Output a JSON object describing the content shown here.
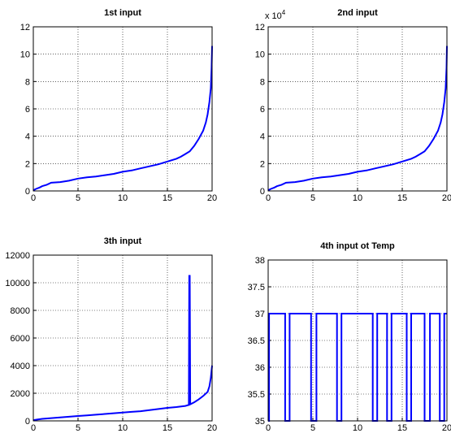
{
  "chart_data": [
    {
      "type": "line",
      "title": "1st input",
      "xlabel": "",
      "ylabel": "",
      "xlim": [
        0,
        20
      ],
      "ylim": [
        0,
        12
      ],
      "xticks": [
        "0",
        "5",
        "10",
        "15",
        "20"
      ],
      "yticks": [
        "0",
        "2",
        "4",
        "6",
        "8",
        "10",
        "12"
      ],
      "multiplier": "",
      "grid": true,
      "step": false,
      "series": [
        {
          "color": "#0000ff",
          "x": [
            0,
            0.3,
            0.7,
            1,
            1.5,
            2,
            3,
            4,
            5,
            6,
            7,
            8,
            9,
            10,
            11,
            12,
            13,
            14,
            15,
            16,
            16.5,
            17,
            17.5,
            18,
            18.5,
            19,
            19.3,
            19.5,
            19.7,
            19.85,
            19.95,
            20
          ],
          "y": [
            0.05,
            0.15,
            0.25,
            0.35,
            0.45,
            0.6,
            0.65,
            0.75,
            0.9,
            1.0,
            1.05,
            1.15,
            1.25,
            1.4,
            1.5,
            1.65,
            1.8,
            1.95,
            2.15,
            2.35,
            2.5,
            2.7,
            2.9,
            3.3,
            3.8,
            4.4,
            5.0,
            5.6,
            6.5,
            7.5,
            9.0,
            10.6
          ]
        }
      ]
    },
    {
      "type": "line",
      "title": "2nd input",
      "xlabel": "",
      "ylabel": "",
      "xlim": [
        0,
        20
      ],
      "ylim": [
        0,
        12
      ],
      "xticks": [
        "0",
        "5",
        "10",
        "15",
        "20"
      ],
      "yticks": [
        "0",
        "2",
        "4",
        "6",
        "8",
        "10",
        "12"
      ],
      "multiplier": "x 10",
      "multiplier_exp": "4",
      "grid": true,
      "step": false,
      "series": [
        {
          "color": "#0000ff",
          "x": [
            0,
            0.3,
            0.7,
            1,
            1.5,
            2,
            3,
            4,
            5,
            6,
            7,
            8,
            9,
            10,
            11,
            12,
            13,
            14,
            15,
            16,
            16.5,
            17,
            17.5,
            18,
            18.5,
            19,
            19.3,
            19.5,
            19.7,
            19.85,
            19.95,
            20
          ],
          "y": [
            0.05,
            0.15,
            0.25,
            0.35,
            0.45,
            0.6,
            0.65,
            0.75,
            0.9,
            1.0,
            1.05,
            1.15,
            1.25,
            1.4,
            1.5,
            1.65,
            1.8,
            1.95,
            2.15,
            2.35,
            2.5,
            2.7,
            2.9,
            3.3,
            3.8,
            4.4,
            5.0,
            5.6,
            6.5,
            7.5,
            9.0,
            10.6
          ]
        }
      ]
    },
    {
      "type": "line",
      "title": "3th input",
      "xlabel": "",
      "ylabel": "",
      "xlim": [
        0,
        20
      ],
      "ylim": [
        0,
        12000
      ],
      "xticks": [
        "0",
        "5",
        "10",
        "15",
        "20"
      ],
      "yticks": [
        "0",
        "2000",
        "4000",
        "6000",
        "8000",
        "10000",
        "12000"
      ],
      "multiplier": "",
      "grid": true,
      "step": false,
      "series": [
        {
          "color": "#0000ff",
          "x": [
            0,
            0.5,
            1,
            2,
            3,
            4,
            5,
            6,
            7,
            8,
            9,
            10,
            11,
            12,
            13,
            14,
            15,
            16,
            17,
            17.4,
            17.45,
            17.5,
            17.55,
            18,
            18.5,
            19,
            19.5,
            19.7,
            19.85,
            20
          ],
          "y": [
            50,
            100,
            150,
            200,
            250,
            300,
            350,
            400,
            450,
            500,
            550,
            600,
            650,
            700,
            780,
            860,
            940,
            1000,
            1080,
            1150,
            10500,
            10500,
            1200,
            1350,
            1550,
            1800,
            2100,
            2500,
            3100,
            4000
          ]
        }
      ]
    },
    {
      "type": "line",
      "title": "4th input ot Temp",
      "xlabel": "",
      "ylabel": "",
      "xlim": [
        0,
        20
      ],
      "ylim": [
        35,
        38
      ],
      "xticks": [
        "0",
        "5",
        "10",
        "15",
        "20"
      ],
      "yticks": [
        "35",
        "35.5",
        "36",
        "36.5",
        "37",
        "37.5",
        "38"
      ],
      "multiplier": "",
      "grid": true,
      "step": true,
      "series": [
        {
          "color": "#0000ff",
          "x": [
            0,
            0.1,
            0.1,
            1.9,
            1.9,
            2.4,
            2.4,
            4.8,
            4.8,
            5.4,
            5.4,
            7.7,
            7.7,
            8.2,
            8.2,
            11.7,
            11.7,
            12.2,
            12.2,
            13.3,
            13.3,
            13.8,
            13.8,
            15.5,
            15.5,
            16.0,
            16.0,
            17.5,
            17.5,
            18.1,
            18.1,
            19.2,
            19.2,
            19.7,
            19.7,
            20
          ],
          "y": [
            35,
            35,
            37,
            37,
            35,
            35,
            37,
            37,
            35,
            35,
            37,
            37,
            35,
            35,
            37,
            37,
            35,
            35,
            37,
            37,
            35,
            35,
            37,
            37,
            35,
            35,
            37,
            37,
            35,
            35,
            37,
            37,
            35,
            35,
            37,
            37
          ]
        }
      ]
    }
  ]
}
